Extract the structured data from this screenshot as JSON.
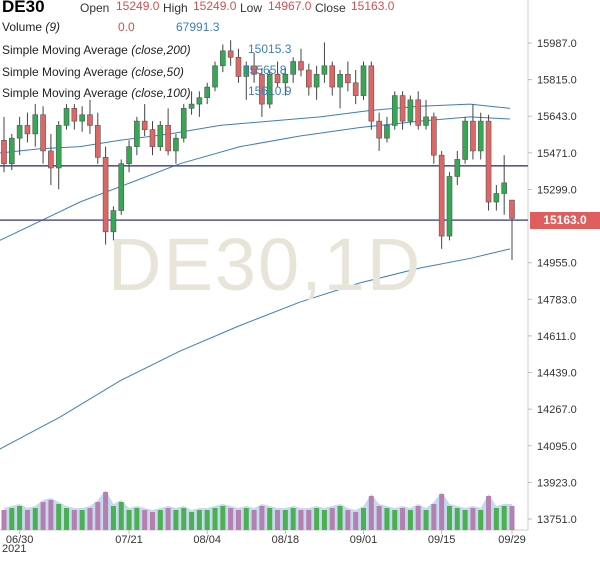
{
  "header": {
    "symbol": "DE30",
    "open_label": "Open",
    "open_value": "15249.0",
    "high_label": "High",
    "high_value": "15249.0",
    "low_label": "Low",
    "low_value": "14967.0",
    "close_label": "Close",
    "close_value": "15163.0"
  },
  "indicators": {
    "volume_label": "Volume",
    "volume_param": "(9)",
    "volume_value_1": "0.0",
    "volume_value_2": "67991.3",
    "sma200_label": "Simple Moving Average",
    "sma200_param": "(close,200)",
    "sma200_value": "15015.3",
    "sma50_label": "Simple Moving Average",
    "sma50_param": "(close,50)",
    "sma50_value": "15565.8",
    "sma100_label": "Simple Moving Average",
    "sma100_param": "(close,100)",
    "sma100_value": "15610.9"
  },
  "watermark": "DE30,1D",
  "year_label": "2021",
  "current_price_badge": "15163.0",
  "colors": {
    "up": "#34a853",
    "down": "#e06666",
    "ma_line": "#3d7ebd",
    "hline": "#5555a0",
    "vol_up": "#4caf50",
    "vol_down": "#b57fb0",
    "vol_area": "#bfd6ef",
    "badge": "#e05d5d",
    "label_blue": "#3d7ebd",
    "label_red": "#d0504f"
  },
  "chart_data": {
    "type": "candlestick",
    "y_axis_ticks": [
      "15987.0",
      "15815.0",
      "15643.0",
      "15471.0",
      "15299.0",
      "14955.0",
      "14783.0",
      "14611.0",
      "14439.0",
      "14267.0",
      "14095.0",
      "13923.0",
      "13751.0"
    ],
    "x_axis_ticks": [
      "06/30",
      "07/21",
      "08/04",
      "08/18",
      "09/01",
      "09/15",
      "09/29"
    ],
    "horizontal_lines": [
      15410,
      15155
    ],
    "candles": [
      {
        "o": 15530,
        "h": 15640,
        "l": 15380,
        "c": 15420
      },
      {
        "o": 15420,
        "h": 15560,
        "l": 15390,
        "c": 15540
      },
      {
        "o": 15540,
        "h": 15640,
        "l": 15460,
        "c": 15600
      },
      {
        "o": 15600,
        "h": 15660,
        "l": 15520,
        "c": 15560
      },
      {
        "o": 15560,
        "h": 15700,
        "l": 15500,
        "c": 15650
      },
      {
        "o": 15650,
        "h": 15690,
        "l": 15420,
        "c": 15480
      },
      {
        "o": 15480,
        "h": 15560,
        "l": 15320,
        "c": 15400
      },
      {
        "o": 15400,
        "h": 15620,
        "l": 15300,
        "c": 15600
      },
      {
        "o": 15600,
        "h": 15700,
        "l": 15580,
        "c": 15680
      },
      {
        "o": 15680,
        "h": 15700,
        "l": 15580,
        "c": 15620
      },
      {
        "o": 15620,
        "h": 15690,
        "l": 15570,
        "c": 15650
      },
      {
        "o": 15650,
        "h": 15720,
        "l": 15560,
        "c": 15600
      },
      {
        "o": 15600,
        "h": 15660,
        "l": 15420,
        "c": 15450
      },
      {
        "o": 15450,
        "h": 15500,
        "l": 15040,
        "c": 15100
      },
      {
        "o": 15100,
        "h": 15220,
        "l": 15060,
        "c": 15200
      },
      {
        "o": 15200,
        "h": 15440,
        "l": 15180,
        "c": 15420
      },
      {
        "o": 15420,
        "h": 15530,
        "l": 15380,
        "c": 15500
      },
      {
        "o": 15500,
        "h": 15640,
        "l": 15460,
        "c": 15620
      },
      {
        "o": 15620,
        "h": 15700,
        "l": 15550,
        "c": 15580
      },
      {
        "o": 15580,
        "h": 15620,
        "l": 15460,
        "c": 15500
      },
      {
        "o": 15500,
        "h": 15620,
        "l": 15480,
        "c": 15600
      },
      {
        "o": 15600,
        "h": 15680,
        "l": 15460,
        "c": 15480
      },
      {
        "o": 15480,
        "h": 15560,
        "l": 15420,
        "c": 15540
      },
      {
        "o": 15540,
        "h": 15700,
        "l": 15520,
        "c": 15680
      },
      {
        "o": 15680,
        "h": 15760,
        "l": 15650,
        "c": 15700
      },
      {
        "o": 15700,
        "h": 15760,
        "l": 15640,
        "c": 15730
      },
      {
        "o": 15730,
        "h": 15800,
        "l": 15700,
        "c": 15780
      },
      {
        "o": 15780,
        "h": 15900,
        "l": 15760,
        "c": 15880
      },
      {
        "o": 15880,
        "h": 15980,
        "l": 15850,
        "c": 15950
      },
      {
        "o": 15950,
        "h": 16000,
        "l": 15880,
        "c": 15920
      },
      {
        "o": 15920,
        "h": 15960,
        "l": 15800,
        "c": 15830
      },
      {
        "o": 15830,
        "h": 15900,
        "l": 15720,
        "c": 15880
      },
      {
        "o": 15880,
        "h": 15940,
        "l": 15800,
        "c": 15840
      },
      {
        "o": 15840,
        "h": 15870,
        "l": 15640,
        "c": 15700
      },
      {
        "o": 15700,
        "h": 15860,
        "l": 15680,
        "c": 15840
      },
      {
        "o": 15840,
        "h": 15900,
        "l": 15780,
        "c": 15800
      },
      {
        "o": 15800,
        "h": 15870,
        "l": 15740,
        "c": 15840
      },
      {
        "o": 15840,
        "h": 15920,
        "l": 15800,
        "c": 15900
      },
      {
        "o": 15900,
        "h": 15960,
        "l": 15830,
        "c": 15860
      },
      {
        "o": 15860,
        "h": 15890,
        "l": 15740,
        "c": 15780
      },
      {
        "o": 15780,
        "h": 15880,
        "l": 15720,
        "c": 15840
      },
      {
        "o": 15840,
        "h": 15990,
        "l": 15800,
        "c": 15880
      },
      {
        "o": 15880,
        "h": 15900,
        "l": 15740,
        "c": 15780
      },
      {
        "o": 15780,
        "h": 15860,
        "l": 15680,
        "c": 15840
      },
      {
        "o": 15840,
        "h": 15900,
        "l": 15760,
        "c": 15800
      },
      {
        "o": 15800,
        "h": 15860,
        "l": 15700,
        "c": 15740
      },
      {
        "o": 15740,
        "h": 15900,
        "l": 15720,
        "c": 15880
      },
      {
        "o": 15880,
        "h": 15900,
        "l": 15580,
        "c": 15620
      },
      {
        "o": 15620,
        "h": 15660,
        "l": 15480,
        "c": 15540
      },
      {
        "o": 15540,
        "h": 15640,
        "l": 15520,
        "c": 15600
      },
      {
        "o": 15600,
        "h": 15760,
        "l": 15580,
        "c": 15740
      },
      {
        "o": 15740,
        "h": 15760,
        "l": 15580,
        "c": 15620
      },
      {
        "o": 15620,
        "h": 15740,
        "l": 15600,
        "c": 15720
      },
      {
        "o": 15720,
        "h": 15760,
        "l": 15580,
        "c": 15600
      },
      {
        "o": 15600,
        "h": 15720,
        "l": 15580,
        "c": 15640
      },
      {
        "o": 15640,
        "h": 15660,
        "l": 15420,
        "c": 15460
      },
      {
        "o": 15460,
        "h": 15480,
        "l": 15020,
        "c": 15080
      },
      {
        "o": 15080,
        "h": 15380,
        "l": 15060,
        "c": 15360
      },
      {
        "o": 15360,
        "h": 15480,
        "l": 15320,
        "c": 15440
      },
      {
        "o": 15440,
        "h": 15640,
        "l": 15420,
        "c": 15620
      },
      {
        "o": 15620,
        "h": 15700,
        "l": 15440,
        "c": 15480
      },
      {
        "o": 15480,
        "h": 15660,
        "l": 15440,
        "c": 15620
      },
      {
        "o": 15620,
        "h": 15650,
        "l": 15200,
        "c": 15240
      },
      {
        "o": 15240,
        "h": 15320,
        "l": 15200,
        "c": 15280
      },
      {
        "o": 15280,
        "h": 15460,
        "l": 15180,
        "c": 15330
      },
      {
        "o": 15249,
        "h": 15249,
        "l": 14967,
        "c": 15163
      }
    ],
    "volume_ratio": [
      0.5,
      0.55,
      0.6,
      0.5,
      0.55,
      0.7,
      0.75,
      0.65,
      0.55,
      0.5,
      0.5,
      0.55,
      0.7,
      0.95,
      0.6,
      0.7,
      0.5,
      0.55,
      0.5,
      0.45,
      0.5,
      0.55,
      0.5,
      0.55,
      0.45,
      0.5,
      0.5,
      0.55,
      0.6,
      0.55,
      0.5,
      0.55,
      0.5,
      0.6,
      0.55,
      0.5,
      0.5,
      0.55,
      0.5,
      0.5,
      0.55,
      0.5,
      0.55,
      0.6,
      0.5,
      0.45,
      0.55,
      0.85,
      0.6,
      0.55,
      0.5,
      0.55,
      0.5,
      0.6,
      0.5,
      0.65,
      0.9,
      0.6,
      0.55,
      0.5,
      0.55,
      0.5,
      0.85,
      0.55,
      0.6,
      0.6
    ]
  }
}
